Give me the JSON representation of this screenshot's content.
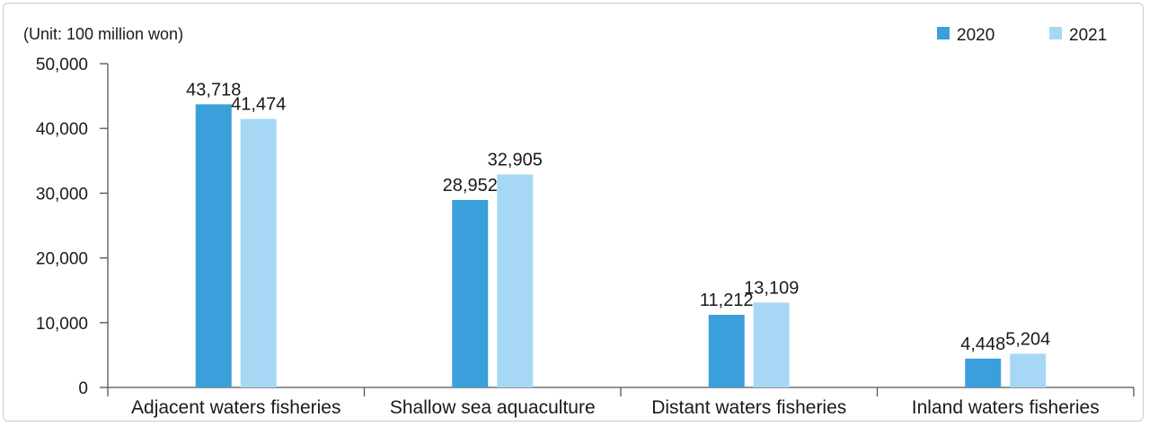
{
  "chart_data": {
    "type": "bar",
    "unit_note": "(Unit: 100 million won)",
    "categories": [
      "Adjacent waters fisheries",
      "Shallow sea aquaculture",
      "Distant waters fisheries",
      "Inland waters fisheries"
    ],
    "series": [
      {
        "name": "2020",
        "color": "#3a9fdb",
        "values": [
          43718,
          28952,
          11212,
          4448
        ],
        "labels": [
          "43,718",
          "28,952",
          "11,212",
          "4,448"
        ]
      },
      {
        "name": "2021",
        "color": "#a6d8f5",
        "values": [
          41474,
          32905,
          13109,
          5204
        ],
        "labels": [
          "41,474",
          "32,905",
          "13,109",
          "5,204"
        ]
      }
    ],
    "ylim": [
      0,
      50000
    ],
    "yticks": [
      0,
      10000,
      20000,
      30000,
      40000,
      50000
    ],
    "ytick_labels": [
      "0",
      "10,000",
      "20,000",
      "30,000",
      "40,000",
      "50,000"
    ],
    "grid": false,
    "legend_position": "top-right"
  }
}
